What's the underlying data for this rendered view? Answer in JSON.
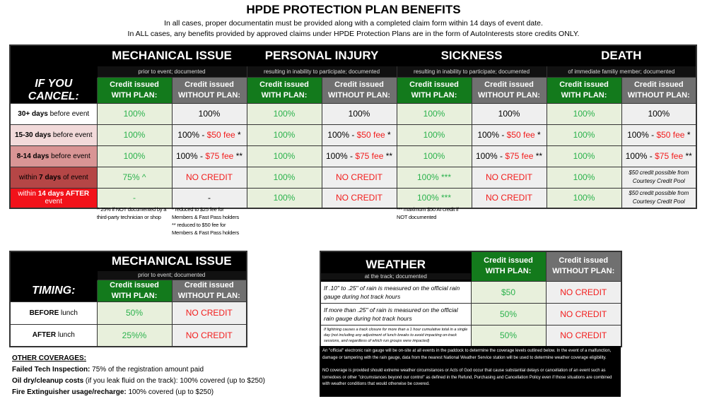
{
  "title": "HPDE PROTECTION PLAN BENEFITS",
  "intro": [
    "In all cases, proper documentatin must be provided along with a completed claim form within 14 days of event date.",
    "In ALL cases, any benefits provided by approved claims under HPDE Protection Plans are in the form of AutoInterests store credits ONLY."
  ],
  "colors": {
    "green_header": "#137a1c",
    "gray_header": "#707070",
    "green_text": "#2bb24c",
    "red_text": "#f21c1c"
  },
  "main": {
    "cancel_label": "IF YOU CANCEL:",
    "with_plan": [
      "Credit issued",
      "WITH PLAN:"
    ],
    "without_plan": [
      "Credit issued",
      "WITHOUT PLAN:"
    ],
    "categories": [
      {
        "title": "MECHANICAL ISSUE",
        "sub": "prior to event; documented"
      },
      {
        "title": "PERSONAL INJURY",
        "sub": "resulting in inability to participate; documented"
      },
      {
        "title": "SICKNESS",
        "sub": "resulting in inability to participate; documented"
      },
      {
        "title": "DEATH",
        "sub": "of immediate familiy member; documented"
      }
    ],
    "rows": [
      {
        "bold": "30+ days",
        "rest": " before event",
        "cells": [
          [
            "100%"
          ],
          [
            "100%"
          ],
          [
            "100%"
          ],
          [
            "100%"
          ],
          [
            "100%"
          ],
          [
            "100%"
          ],
          [
            "100%"
          ],
          [
            "100%"
          ]
        ]
      },
      {
        "bold": "15-30 days",
        "rest": " before event",
        "cells": [
          [
            "100%"
          ],
          [
            "100% - ",
            "$50 fee",
            " *"
          ],
          [
            "100%"
          ],
          [
            "100% - ",
            "$50 fee",
            " *"
          ],
          [
            "100%"
          ],
          [
            "100% - ",
            "$50 fee",
            " *"
          ],
          [
            "100%"
          ],
          [
            "100% - ",
            "$50 fee",
            " *"
          ]
        ]
      },
      {
        "bold": "8-14 days",
        "rest": " before event",
        "cells": [
          [
            "100%"
          ],
          [
            "100% - ",
            "$75 fee",
            " **"
          ],
          [
            "100%"
          ],
          [
            "100% - ",
            "$75 fee",
            " **"
          ],
          [
            "100%"
          ],
          [
            "100% - ",
            "$75 fee",
            " **"
          ],
          [
            "100%"
          ],
          [
            "100% - ",
            "$75 fee",
            " **"
          ]
        ]
      },
      {
        "pre": "within ",
        "bold": "7 days",
        "rest": " of event",
        "cells": [
          [
            "75% ^"
          ],
          [
            "",
            "NO CREDIT"
          ],
          [
            "100%"
          ],
          [
            "",
            "NO CREDIT"
          ],
          [
            "100% ***"
          ],
          [
            "",
            "NO CREDIT"
          ],
          [
            "100%"
          ],
          [
            "$50 credit possible from Courtesy Credit Pool"
          ]
        ]
      },
      {
        "pre": "within ",
        "bold": "14 days AFTER",
        "rest": " event",
        "cells": [
          [
            "-"
          ],
          [
            "-"
          ],
          [
            "100%"
          ],
          [
            "",
            "NO CREDIT"
          ],
          [
            "100% ***"
          ],
          [
            "",
            "NO CREDIT"
          ],
          [
            "100%"
          ],
          [
            "$50 credit possible from Courtesy Credit Pool"
          ]
        ]
      }
    ],
    "notes": {
      "mech": "^ 25% if NOT documented by a third-party technician or shop",
      "fees": "* reduced to $25 fee for Members & Fast Pass holders",
      "fees2": "** reduced to $50 fee for Members & Fast Pass holders",
      "sick": "*** maximum $50 AI credit if NOT documented"
    }
  },
  "timing": {
    "title": "MECHANICAL ISSUE",
    "sub": "prior to event; documented",
    "label": "TIMING:",
    "rows": [
      {
        "bold": "BEFORE",
        "rest": " lunch",
        "with": "50%",
        "without": "NO CREDIT"
      },
      {
        "bold": "AFTER",
        "rest": " lunch",
        "with": "25%%",
        "without": "NO CREDIT"
      }
    ]
  },
  "other": {
    "heading": "OTHER COVERAGES:",
    "items": [
      {
        "label": "Failed Tech Inspection:",
        "text": " 75% of the registration amount paid"
      },
      {
        "label": "Oil dry/cleanup costs",
        "text": " (if you leak fluid on the track): 100% covered (up to $250)"
      },
      {
        "label": "Fire Extinguisher usage/recharge:",
        "text": " 100% covered (up to $250)"
      }
    ]
  },
  "weather": {
    "title": "WEATHER",
    "sub": "at the track; documented",
    "rows": [
      {
        "cond": "If .10\" to .25\" of rain is measured on the official rain gauge during hot track hours",
        "with": "$50",
        "without": "NO CREDIT"
      },
      {
        "cond": "If more than .25\" of rain is measured on the official rain gauge during hot track hours",
        "with": "50%",
        "without": "NO CREDIT"
      },
      {
        "cond": "If lightning causes a track closure for more than a 1 hour cumulative total in a single day (not including any adjustment of lunch breaks to avoid impacting on-track sessions, and regardless of which run groups were impacted)",
        "with": "50%",
        "without": "NO CREDIT"
      }
    ],
    "note1": "An \"official\" electronic rain gauge will be on-site at all events in the paddock to determine the coverage levels outlined below. In the event of a malfunction, damage or tampering with the rain gauge, data from the nearest National Weather Service station will be used to determine weather coverage eligibility.",
    "note2": "NO coverage is provided should extreme weather circumstances or Acts of God occur that cause substantial delays or cancellation of an event such as tornedoes or other \"circumstances beyond our control\" as defined in the Refund, Purchasing and Cancellation Policy even if those situations are combined with weather conditions that would otherwise be covered."
  }
}
